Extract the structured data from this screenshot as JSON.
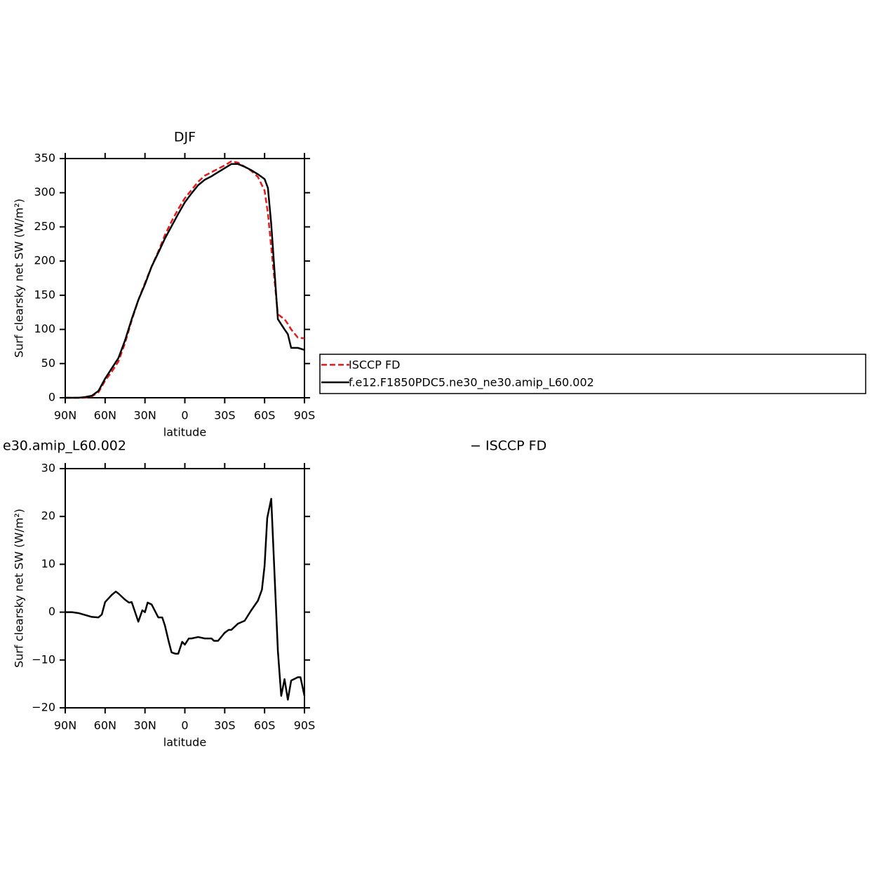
{
  "chart_data": [
    {
      "type": "line",
      "title": "DJF",
      "xlabel": "latitude",
      "ylabel": "Surf clearsky net SW (W/m²)",
      "xlim": [
        90,
        -90
      ],
      "ylim": [
        0,
        350
      ],
      "xticks": [
        {
          "value": 90,
          "label": "90N"
        },
        {
          "value": 60,
          "label": "60N"
        },
        {
          "value": 30,
          "label": "30N"
        },
        0,
        {
          "value": -30,
          "label": "30S"
        },
        {
          "value": -60,
          "label": "60S"
        },
        {
          "value": -90,
          "label": "90S"
        }
      ],
      "yticks": [
        0,
        50,
        100,
        150,
        200,
        250,
        300,
        350
      ],
      "legend": "right",
      "x": [
        90,
        85,
        80,
        75,
        70,
        65,
        60,
        55,
        50,
        45,
        40,
        35,
        30,
        25,
        20,
        15,
        10,
        5,
        0,
        -5,
        -10,
        -15,
        -20,
        -25,
        -30,
        -35,
        -40,
        -45,
        -50,
        -55,
        -60,
        -62.5,
        -65,
        -70,
        -75,
        -77.5,
        -80,
        -85,
        -90
      ],
      "series": [
        {
          "name": "ISCCP FD",
          "color": "#e41a1c",
          "dash": true,
          "values": [
            0,
            0,
            0,
            0,
            2,
            8,
            25,
            38,
            53,
            80,
            113,
            143,
            168,
            192,
            214,
            238,
            258,
            276,
            292,
            304,
            316,
            325,
            330,
            335,
            340,
            346,
            344,
            338,
            332,
            323,
            303,
            270,
            220,
            122,
            115,
            108,
            100,
            88,
            87
          ]
        },
        {
          "name": "f.e12.F1850PDC5.ne30_ne30.amip_L60.002",
          "color": "#000000",
          "dash": false,
          "values": [
            0,
            0,
            0,
            1,
            3,
            10,
            28,
            43,
            58,
            84,
            115,
            143,
            166,
            192,
            212,
            233,
            251,
            269,
            286,
            299,
            311,
            319,
            324,
            330,
            336,
            342,
            342,
            338,
            333,
            327,
            320,
            307,
            254,
            115,
            100,
            93,
            73,
            73,
            70
          ]
        }
      ]
    },
    {
      "type": "line",
      "title_left": "e30.amip_L60.002",
      "title_right": "− ISCCP FD",
      "xlabel": "latitude",
      "ylabel": "Surf clearsky net SW (W/m²)",
      "xlim": [
        90,
        -90
      ],
      "ylim": [
        -20,
        30
      ],
      "xticks": [
        {
          "value": 90,
          "label": "90N"
        },
        {
          "value": 60,
          "label": "60N"
        },
        {
          "value": 30,
          "label": "30N"
        },
        0,
        {
          "value": -30,
          "label": "30S"
        },
        {
          "value": -60,
          "label": "60S"
        },
        {
          "value": -90,
          "label": "90S"
        }
      ],
      "yticks": [
        {
          "value": -20,
          "label": "−20"
        },
        {
          "value": -10,
          "label": "−10"
        },
        0,
        10,
        20,
        30
      ],
      "color": "#000000",
      "x": [
        90,
        85,
        80,
        75,
        70,
        65,
        62.5,
        60,
        55,
        52,
        50,
        45,
        42,
        40,
        35,
        32,
        30,
        28,
        25,
        20,
        17,
        15,
        12,
        10,
        7,
        5,
        2,
        0,
        -3,
        -5,
        -10,
        -15,
        -20,
        -22,
        -25,
        -30,
        -33,
        -35,
        -40,
        -45,
        -50,
        -55,
        -58,
        -60,
        -62,
        -65,
        -70,
        -72.5,
        -75,
        -77.5,
        -80,
        -85,
        -87,
        -90
      ],
      "values": [
        0,
        0,
        -0.2,
        -0.6,
        -1,
        -1.1,
        -0.5,
        2.1,
        3.6,
        4.3,
        3.9,
        2.6,
        2.0,
        2.1,
        -2,
        0.4,
        0,
        2,
        1.6,
        -1.1,
        -1.1,
        -2.8,
        -6.3,
        -8.4,
        -8.7,
        -8.7,
        -6.2,
        -6.8,
        -5.5,
        -5.5,
        -5.2,
        -5.5,
        -5.5,
        -6,
        -6,
        -4.3,
        -3.7,
        -3.7,
        -2.4,
        -1.8,
        0.4,
        2.4,
        4.7,
        9.7,
        19.7,
        23.7,
        -8.1,
        -17.5,
        -14,
        -18.3,
        -14.3,
        -13.6,
        -13.6,
        -17.5
      ]
    }
  ]
}
